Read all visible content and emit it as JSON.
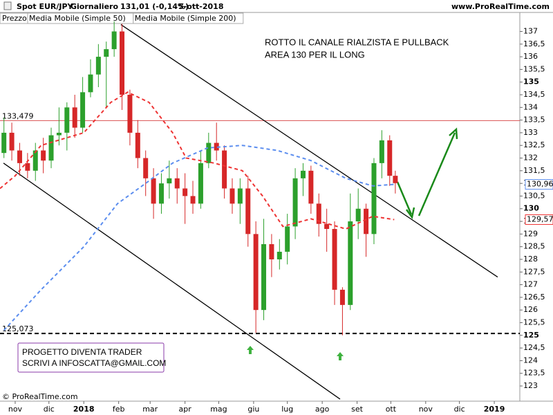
{
  "chart_data": {
    "type": "candlestick",
    "title": "Spot EUR/JPY",
    "period": "Giornaliero",
    "price": "131,01 (-0,14%)",
    "date": "5-ott-2018",
    "site": "www.ProRealTime.com",
    "copyright": "© ProRealTime.com",
    "price_legend": "Prezzo",
    "annotation": [
      "ROTTO IL CANALE RIALZISTA E PULLBACK",
      "AREA 130 PER IL LONG"
    ],
    "note_box": [
      "PROGETTO DIVENTA TRADER",
      "SCRIVI A INFOSCATTA@GMAIL.COM"
    ],
    "up_color": "#2ca02c",
    "down_color": "#d62728",
    "candles": {
      "x": [
        -10,
        -3,
        4,
        11,
        18,
        25,
        32,
        39,
        46,
        53,
        60,
        67,
        74,
        81,
        88,
        95,
        102,
        109,
        116,
        123,
        130,
        137,
        144,
        151,
        158,
        165,
        172,
        179,
        186,
        193,
        200,
        207,
        214,
        221,
        228,
        235,
        242,
        249,
        256,
        263,
        270,
        277,
        284,
        291,
        298,
        305,
        312,
        319,
        326,
        333,
        338
      ],
      "open": [
        132.2,
        133.0,
        132.3,
        131.8,
        131.5,
        132.3,
        131.9,
        132.9,
        133.0,
        134.0,
        133.2,
        134.6,
        135.3,
        136.0,
        136.3,
        137.0,
        134.5,
        133.0,
        132.0,
        131.2,
        130.2,
        131.0,
        131.2,
        130.8,
        130.5,
        130.2,
        131.8,
        132.6,
        132.3,
        130.8,
        130.2,
        130.8,
        129.0,
        126.0,
        128.6,
        128.0,
        128.3,
        129.3,
        131.2,
        131.5,
        130.2,
        129.4,
        129.2,
        126.8,
        126.2,
        129.5,
        130.0,
        129.0,
        131.8,
        132.7,
        131.3
      ],
      "high": [
        133.6,
        133.4,
        132.6,
        132.2,
        132.6,
        132.8,
        133.2,
        134.0,
        134.2,
        134.5,
        135.2,
        135.9,
        136.5,
        136.6,
        137.4,
        137.3,
        134.7,
        133.5,
        132.3,
        131.6,
        131.4,
        131.9,
        131.6,
        131.4,
        131.1,
        132.3,
        133.0,
        133.4,
        132.5,
        131.2,
        131.2,
        131.3,
        129.5,
        129.6,
        129.0,
        128.8,
        129.8,
        131.6,
        131.8,
        131.7,
        130.6,
        130.0,
        129.5,
        126.9,
        130.6,
        130.8,
        130.2,
        132.0,
        133.1,
        132.9,
        131.5
      ],
      "low": [
        132.0,
        131.9,
        131.3,
        131.2,
        131.1,
        131.4,
        131.6,
        132.5,
        132.3,
        132.8,
        133.0,
        134.4,
        134.8,
        134.0,
        136.0,
        133.9,
        132.5,
        131.6,
        130.5,
        129.6,
        129.8,
        130.4,
        130.2,
        129.4,
        129.8,
        130.0,
        131.6,
        131.9,
        130.4,
        129.8,
        129.4,
        128.5,
        125.1,
        125.6,
        127.3,
        127.6,
        127.8,
        128.8,
        130.5,
        129.8,
        128.9,
        128.3,
        126.2,
        125.0,
        126.0,
        128.8,
        128.1,
        128.6,
        131.2,
        130.9,
        130.6
      ],
      "close": [
        133.0,
        132.3,
        131.8,
        131.5,
        132.3,
        131.9,
        132.9,
        133.0,
        134.0,
        133.2,
        134.6,
        135.3,
        136.0,
        136.3,
        137.0,
        134.5,
        133.0,
        132.0,
        131.2,
        130.2,
        131.0,
        131.2,
        130.8,
        130.5,
        130.2,
        131.8,
        132.6,
        132.3,
        130.8,
        130.2,
        130.8,
        129.0,
        126.0,
        128.6,
        128.0,
        128.3,
        129.3,
        131.2,
        131.5,
        130.2,
        129.4,
        129.2,
        126.8,
        126.2,
        129.5,
        130.0,
        129.0,
        131.8,
        132.7,
        131.3,
        131.01
      ]
    },
    "series": [
      {
        "name": "Media Mobile (Simple 50)",
        "color": "#ee3333",
        "last_label": "129,57",
        "x": [
          -13.5,
          0,
          23,
          61,
          85,
          100,
          119,
          140,
          152,
          177,
          202,
          220,
          238,
          263,
          294,
          318,
          337
        ],
        "values": [
          130.8,
          131.3,
          132.5,
          133.0,
          134.2,
          134.6,
          134.2,
          133.0,
          132.0,
          131.8,
          131.5,
          130.5,
          129.3,
          129.6,
          129.2,
          129.7,
          129.57
        ]
      },
      {
        "name": "Media Mobile (Simple 200)",
        "color": "#5b8def",
        "last_label": "130,96",
        "x": [
          -10,
          23,
          61,
          91,
          116,
          140,
          171,
          202,
          233,
          263,
          294,
          318,
          337
        ],
        "values": [
          125.2,
          126.8,
          128.5,
          130.2,
          131.0,
          131.8,
          132.4,
          132.5,
          132.3,
          131.9,
          131.2,
          130.9,
          130.96
        ]
      }
    ],
    "levels": [
      {
        "value": 133.479,
        "label": "133,479",
        "color": "#d95050",
        "dashed": false
      },
      {
        "value": 125.073,
        "label": "125,073",
        "color": "#000000",
        "dashed": true
      }
    ],
    "trendlines": [
      {
        "x": [
          94,
          429
        ],
        "y": [
          137.27,
          127.3
        ]
      },
      {
        "x": [
          -10.4,
          288.9
        ],
        "y": [
          131.8,
          122.48
        ]
      }
    ],
    "xlim": [
      -13.5,
      448.7
    ],
    "ylim": [
      122.4,
      137.75
    ],
    "xticks": [
      {
        "value": 0,
        "label": "nov"
      },
      {
        "value": 30,
        "label": "dic"
      },
      {
        "value": 61,
        "label": "2018"
      },
      {
        "value": 92,
        "label": "feb"
      },
      {
        "value": 120,
        "label": "mar"
      },
      {
        "value": 151,
        "label": "apr"
      },
      {
        "value": 181,
        "label": "mag"
      },
      {
        "value": 212,
        "label": "giu"
      },
      {
        "value": 242,
        "label": "lug"
      },
      {
        "value": 273,
        "label": "ago"
      },
      {
        "value": 304,
        "label": "set"
      },
      {
        "value": 334,
        "label": "ott"
      },
      {
        "value": 365,
        "label": "nov"
      },
      {
        "value": 395,
        "label": "dic"
      },
      {
        "value": 426,
        "label": "2019"
      }
    ],
    "yticks": [
      123,
      {
        "value": 123.5,
        "label": "123,5"
      },
      124,
      {
        "value": 124.5,
        "label": "124,5"
      },
      125,
      {
        "value": 125.5,
        "label": "125,5"
      },
      126,
      {
        "value": 126.5,
        "label": "126,5"
      },
      127,
      {
        "value": 127.5,
        "label": "127,5"
      },
      128,
      {
        "value": 128.5,
        "label": "128,5"
      },
      129,
      {
        "value": 129.5,
        "label": "129,5"
      },
      130,
      {
        "value": 130.5,
        "label": "130,5"
      },
      131,
      {
        "value": 131.5,
        "label": "131,5"
      },
      132,
      {
        "value": 132.5,
        "label": "132,5"
      },
      133,
      {
        "value": 133.5,
        "label": "133,5"
      },
      134,
      {
        "value": 134.5,
        "label": "134,5"
      },
      135,
      {
        "value": 135.5,
        "label": "135,5"
      },
      136,
      {
        "value": 136.5,
        "label": "136,5"
      },
      137
    ]
  }
}
